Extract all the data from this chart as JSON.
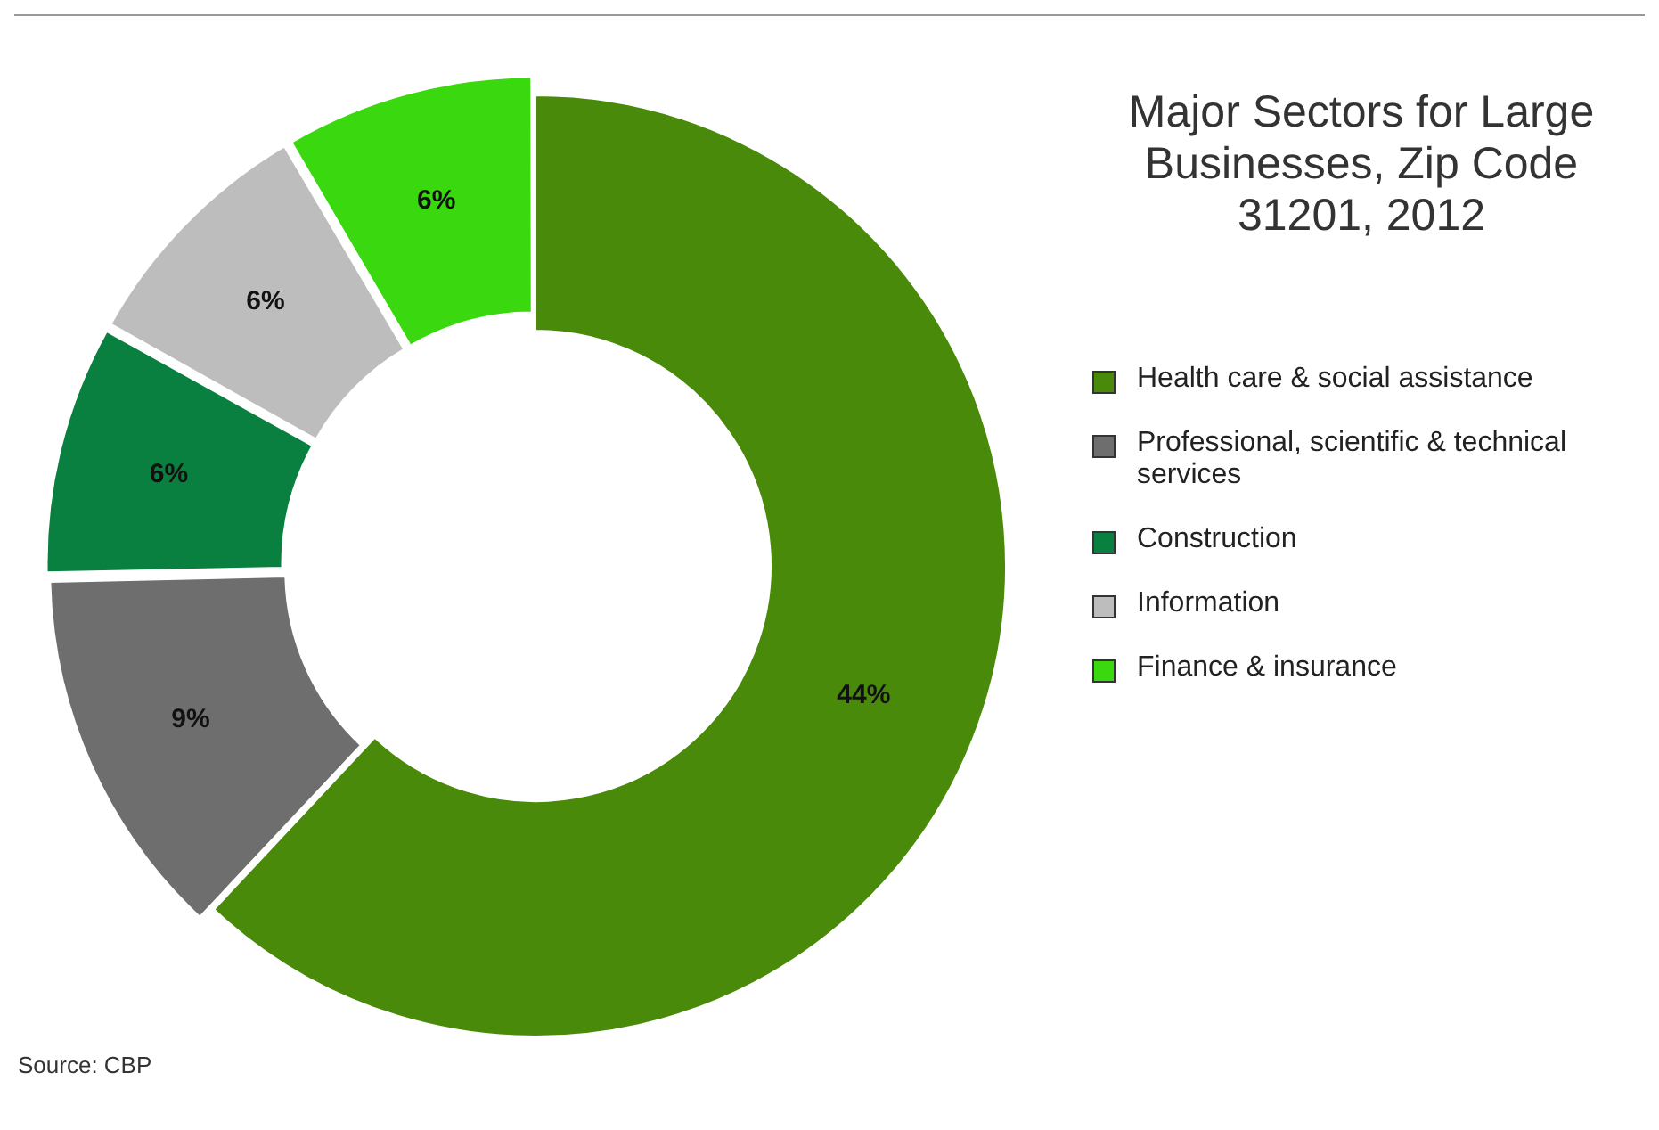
{
  "chart_data": {
    "type": "donut",
    "title": "Major Sectors for Large Businesses, Zip Code 31201, 2012",
    "categories": [
      "Health care & social assistance",
      "Professional, scientific & technical services",
      "Construction",
      "Information",
      "Finance & insurance"
    ],
    "values": [
      44,
      9,
      6,
      6,
      6
    ],
    "value_labels": [
      "44%",
      "9%",
      "6%",
      "6%",
      "6%"
    ],
    "colors": [
      "#4a8a0a",
      "#6e6e6e",
      "#0a8040",
      "#bdbdbd",
      "#3ad80f"
    ],
    "legend": "right",
    "annotations": [
      "Source:  CBP"
    ]
  }
}
